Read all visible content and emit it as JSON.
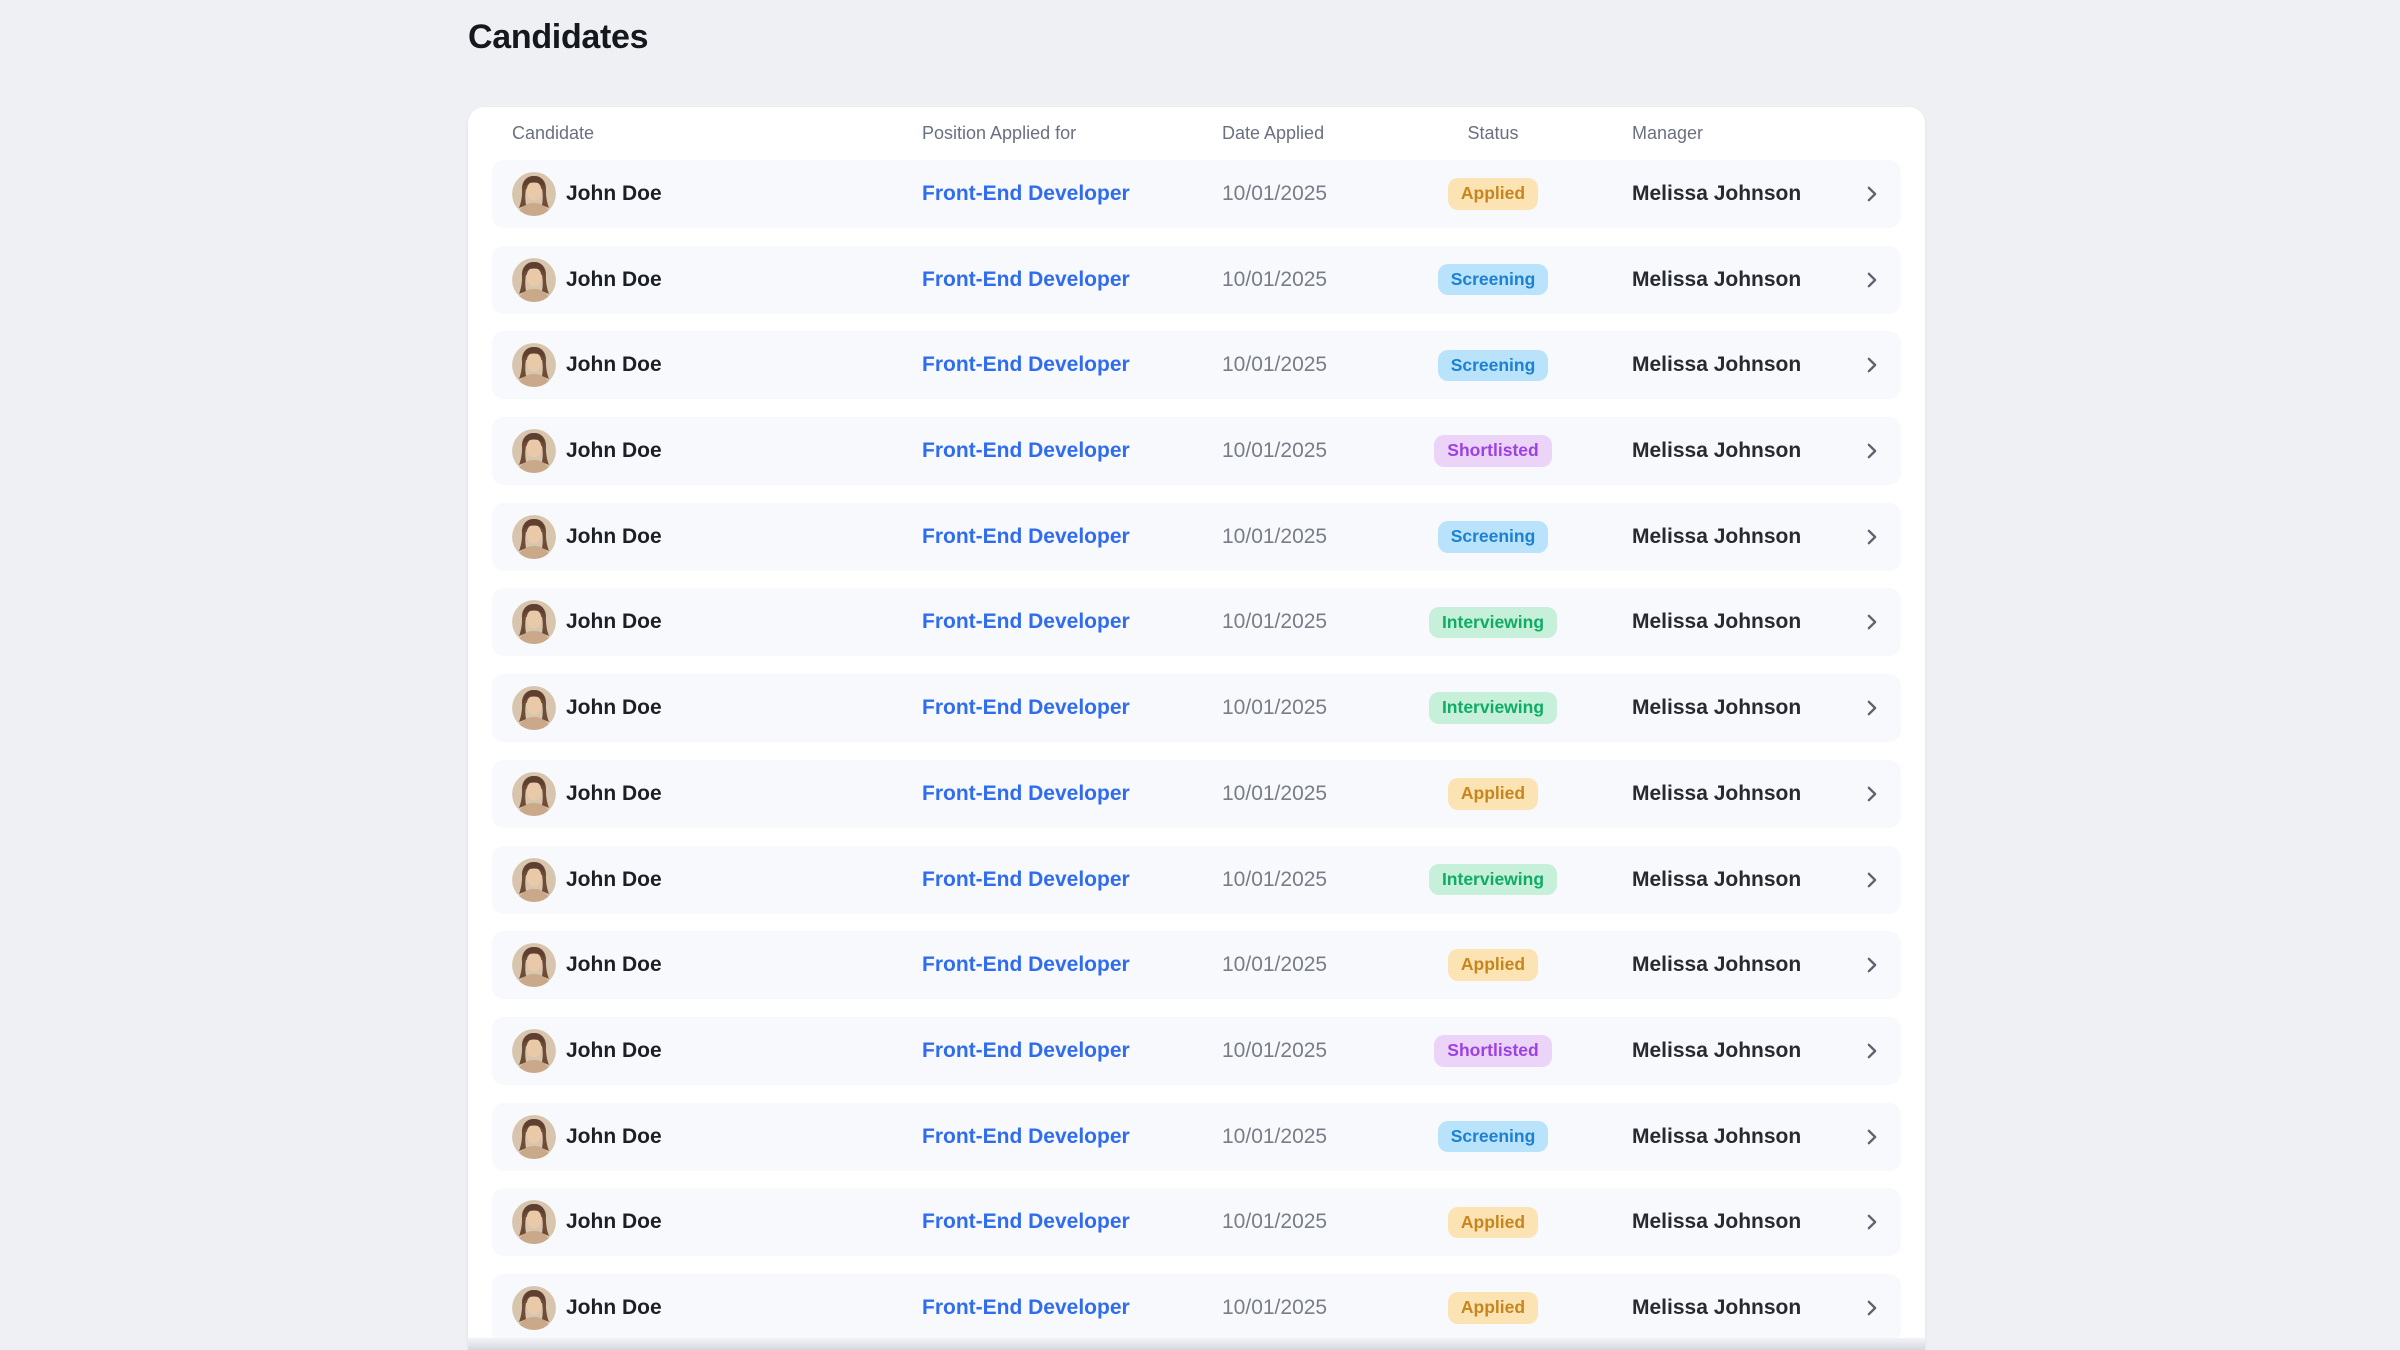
{
  "page": {
    "title": "Candidates",
    "background_color": "#eef0f4"
  },
  "table": {
    "columns": [
      "Candidate",
      "Position Applied for",
      "Date Applied",
      "Status",
      "Manager"
    ],
    "rows": [
      {
        "name": "John Doe",
        "position": "Front-End Developer",
        "date": "10/01/2025",
        "status": "Applied",
        "manager": "Melissa Johnson"
      },
      {
        "name": "John Doe",
        "position": "Front-End Developer",
        "date": "10/01/2025",
        "status": "Screening",
        "manager": "Melissa Johnson"
      },
      {
        "name": "John Doe",
        "position": "Front-End Developer",
        "date": "10/01/2025",
        "status": "Screening",
        "manager": "Melissa Johnson"
      },
      {
        "name": "John Doe",
        "position": "Front-End Developer",
        "date": "10/01/2025",
        "status": "Shortlisted",
        "manager": "Melissa Johnson"
      },
      {
        "name": "John Doe",
        "position": "Front-End Developer",
        "date": "10/01/2025",
        "status": "Screening",
        "manager": "Melissa Johnson"
      },
      {
        "name": "John Doe",
        "position": "Front-End Developer",
        "date": "10/01/2025",
        "status": "Interviewing",
        "manager": "Melissa Johnson"
      },
      {
        "name": "John Doe",
        "position": "Front-End Developer",
        "date": "10/01/2025",
        "status": "Interviewing",
        "manager": "Melissa Johnson"
      },
      {
        "name": "John Doe",
        "position": "Front-End Developer",
        "date": "10/01/2025",
        "status": "Applied",
        "manager": "Melissa Johnson"
      },
      {
        "name": "John Doe",
        "position": "Front-End Developer",
        "date": "10/01/2025",
        "status": "Interviewing",
        "manager": "Melissa Johnson"
      },
      {
        "name": "John Doe",
        "position": "Front-End Developer",
        "date": "10/01/2025",
        "status": "Applied",
        "manager": "Melissa Johnson"
      },
      {
        "name": "John Doe",
        "position": "Front-End Developer",
        "date": "10/01/2025",
        "status": "Shortlisted",
        "manager": "Melissa Johnson"
      },
      {
        "name": "John Doe",
        "position": "Front-End Developer",
        "date": "10/01/2025",
        "status": "Screening",
        "manager": "Melissa Johnson"
      },
      {
        "name": "John Doe",
        "position": "Front-End Developer",
        "date": "10/01/2025",
        "status": "Applied",
        "manager": "Melissa Johnson"
      },
      {
        "name": "John Doe",
        "position": "Front-End Developer",
        "date": "10/01/2025",
        "status": "Applied",
        "manager": "Melissa Johnson"
      }
    ]
  },
  "status_styles": {
    "Applied": {
      "bg": "#fbe3b4",
      "fg": "#c7861d"
    },
    "Screening": {
      "bg": "#b9e3fa",
      "fg": "#1c80d3"
    },
    "Shortlisted": {
      "bg": "#ecd4f9",
      "fg": "#9c41e5"
    },
    "Interviewing": {
      "bg": "#c6f0d9",
      "fg": "#10ac66"
    }
  },
  "colors": {
    "link": "#2f6cf0",
    "row_background": "#f8f9fd",
    "header_text": "#697080"
  },
  "icons": {
    "row_chevron": "chevron-right-icon",
    "candidate_avatar": "candidate-avatar"
  }
}
